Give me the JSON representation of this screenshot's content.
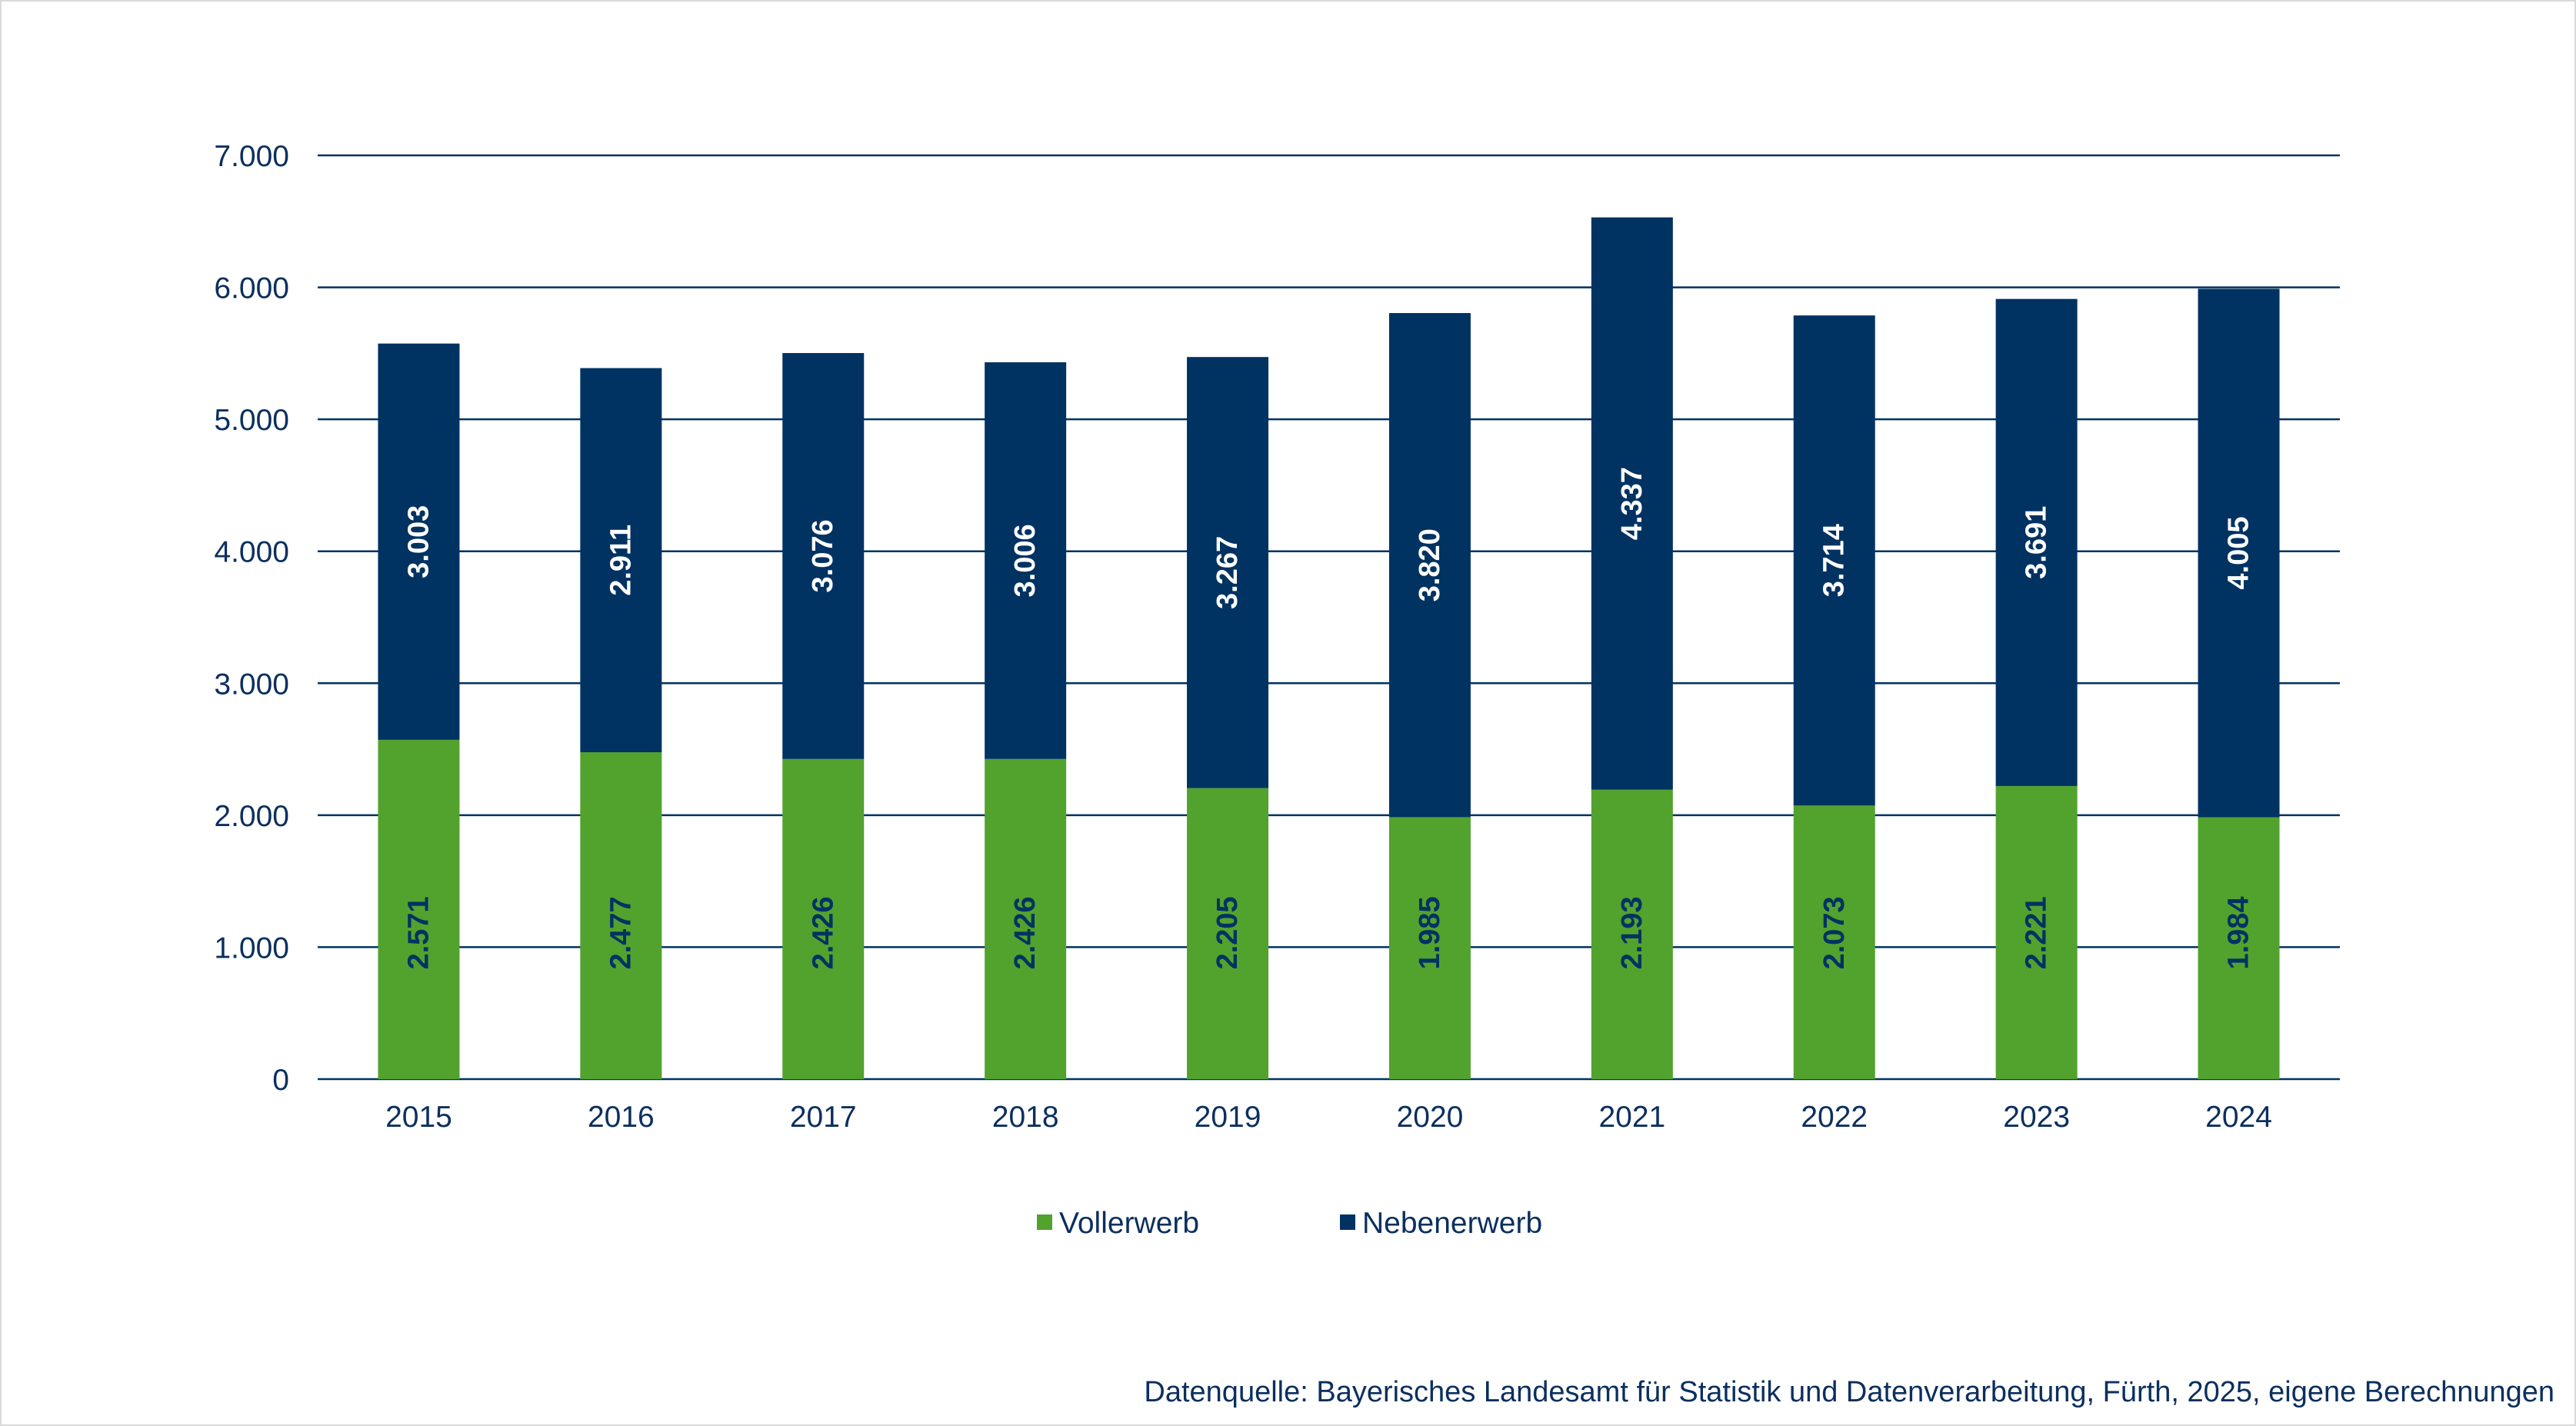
{
  "colors": {
    "vollerwerb": "#52a22e",
    "nebenerwerb": "#003262",
    "axis_text": "#0b2f5e",
    "grid": "#003262"
  },
  "chart_data": {
    "type": "bar",
    "stacked": true,
    "categories": [
      "2015",
      "2016",
      "2017",
      "2018",
      "2019",
      "2020",
      "2021",
      "2022",
      "2023",
      "2024"
    ],
    "series": [
      {
        "name": "Vollerwerb",
        "values": [
          2571,
          2477,
          2426,
          2426,
          2205,
          1985,
          2193,
          2073,
          2221,
          1984
        ],
        "labels": [
          "2.571",
          "2.477",
          "2.426",
          "2.426",
          "2.205",
          "1.985",
          "2.193",
          "2.073",
          "2.221",
          "1.984"
        ]
      },
      {
        "name": "Nebenerwerb",
        "values": [
          3003,
          2911,
          3076,
          3006,
          3267,
          3820,
          4337,
          3714,
          3691,
          4005
        ],
        "labels": [
          "3.003",
          "2.911",
          "3.076",
          "3.006",
          "3.267",
          "3.820",
          "4.337",
          "3.714",
          "3.691",
          "4.005"
        ]
      }
    ],
    "ylim": [
      0,
      7000
    ],
    "yticks": [
      0,
      1000,
      2000,
      3000,
      4000,
      5000,
      6000,
      7000
    ],
    "ytick_labels": [
      "0",
      "1.000",
      "2.000",
      "3.000",
      "4.000",
      "5.000",
      "6.000",
      "7.000"
    ],
    "grid": true,
    "legend": "bottom-center"
  },
  "source": "Datenquelle: Bayerisches Landesamt für Statistik und Datenverarbeitung, Fürth, 2025, eigene Berechnungen"
}
